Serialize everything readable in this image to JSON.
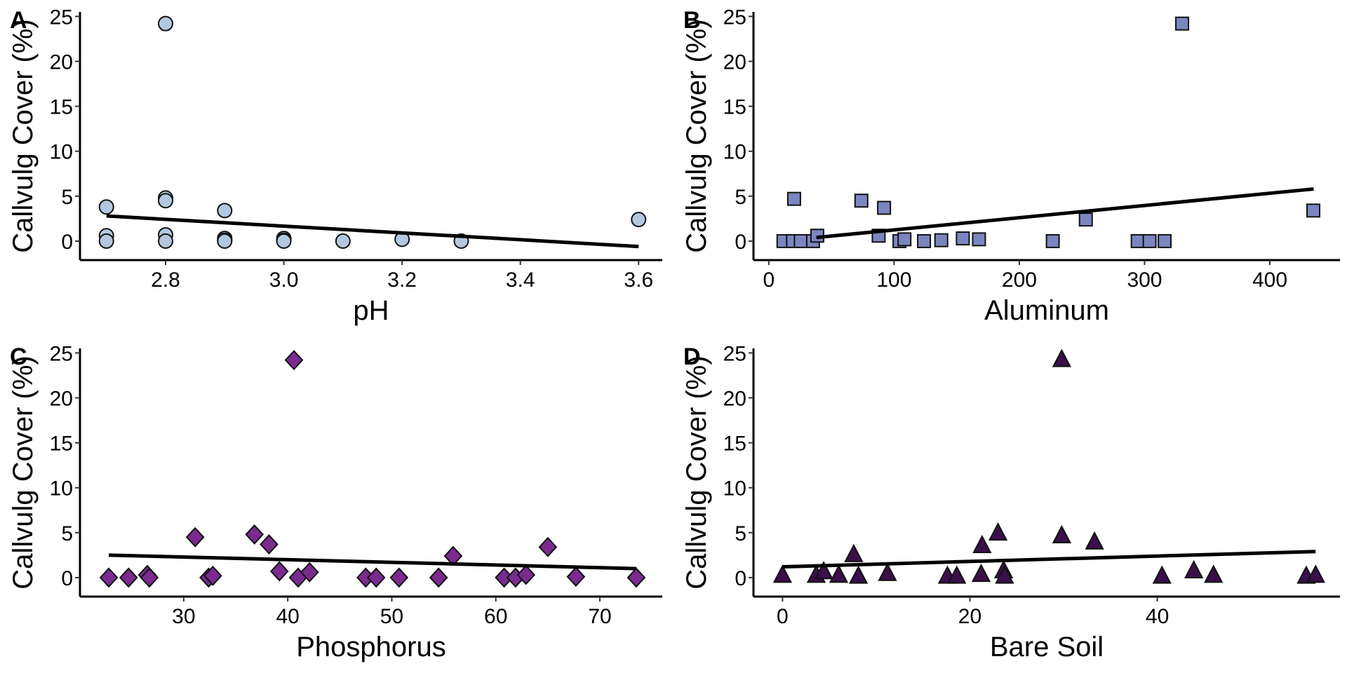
{
  "chart_data": [
    {
      "type": "scatter",
      "panel_label": "A",
      "xlabel": "pH",
      "ylabel": "Callvulg Cover (%)",
      "xlim": [
        2.66,
        3.64
      ],
      "ylim": [
        -1.8,
        25.5
      ],
      "xticks": [
        2.8,
        3.0,
        3.2,
        3.4,
        3.6
      ],
      "xtick_labels": [
        "2.8",
        "3.0",
        "3.2",
        "3.4",
        "3.6"
      ],
      "yticks": [
        0,
        5,
        10,
        15,
        20,
        25
      ],
      "ytick_labels": [
        "0",
        "5",
        "10",
        "15",
        "20",
        "25"
      ],
      "grid": false,
      "marker": "circle",
      "marker_color": "#b3c8e0",
      "points": [
        [
          2.7,
          3.8
        ],
        [
          2.7,
          0.6
        ],
        [
          2.7,
          0.0
        ],
        [
          2.8,
          24.2
        ],
        [
          2.8,
          4.8
        ],
        [
          2.8,
          4.5
        ],
        [
          2.8,
          0.7
        ],
        [
          2.8,
          0.0
        ],
        [
          2.9,
          3.4
        ],
        [
          2.9,
          0.3
        ],
        [
          2.9,
          0.1
        ],
        [
          2.9,
          0.0
        ],
        [
          3.0,
          0.3
        ],
        [
          3.0,
          0.1
        ],
        [
          3.0,
          0.0
        ],
        [
          3.1,
          0.0
        ],
        [
          3.2,
          0.2
        ],
        [
          3.3,
          0.0
        ],
        [
          3.6,
          2.4
        ]
      ],
      "trend_line": [
        [
          2.7,
          2.8
        ],
        [
          3.6,
          -0.6
        ]
      ]
    },
    {
      "type": "scatter",
      "panel_label": "B",
      "xlabel": "Aluminum",
      "ylabel": "Callvulg Cover (%)",
      "xlim": [
        -10,
        456
      ],
      "ylim": [
        -1.8,
        25.5
      ],
      "xticks": [
        0,
        100,
        200,
        300,
        400
      ],
      "xtick_labels": [
        "0",
        "100",
        "200",
        "300",
        "400"
      ],
      "yticks": [
        0,
        5,
        10,
        15,
        20,
        25
      ],
      "ytick_labels": [
        "0",
        "5",
        "10",
        "15",
        "20",
        "25"
      ],
      "grid": false,
      "marker": "square",
      "marker_color": "#7b86c0",
      "points": [
        [
          11.7,
          0.0
        ],
        [
          19.3,
          0.0
        ],
        [
          20.2,
          4.7
        ],
        [
          25.5,
          0.0
        ],
        [
          35.3,
          0.0
        ],
        [
          38.7,
          0.6
        ],
        [
          73.9,
          4.5
        ],
        [
          87.7,
          0.6
        ],
        [
          92.0,
          3.7
        ],
        [
          104.3,
          0.0
        ],
        [
          108.3,
          0.2
        ],
        [
          123.9,
          0.0
        ],
        [
          137.7,
          0.1
        ],
        [
          154.9,
          0.3
        ],
        [
          167.8,
          0.2
        ],
        [
          226.7,
          0.0
        ],
        [
          253.1,
          2.4
        ],
        [
          294.5,
          0.0
        ],
        [
          304.0,
          0.0
        ],
        [
          316.0,
          0.0
        ],
        [
          330.0,
          24.2
        ],
        [
          434.7,
          3.4
        ]
      ],
      "trend_line": [
        [
          38,
          0.4
        ],
        [
          435,
          5.8
        ]
      ]
    },
    {
      "type": "scatter",
      "panel_label": "C",
      "xlabel": "Phosphorus",
      "ylabel": "Callvulg Cover (%)",
      "xlim": [
        20.3,
        76.0
      ],
      "ylim": [
        -1.8,
        25.5
      ],
      "xticks": [
        30,
        40,
        50,
        60,
        70
      ],
      "xtick_labels": [
        "30",
        "40",
        "50",
        "60",
        "70"
      ],
      "yticks": [
        0,
        5,
        10,
        15,
        20,
        25
      ],
      "ytick_labels": [
        "0",
        "5",
        "10",
        "15",
        "20",
        "25"
      ],
      "grid": false,
      "marker": "diamond",
      "marker_color": "#7b2a8f",
      "points": [
        [
          22.8,
          0.0
        ],
        [
          24.7,
          0.0
        ],
        [
          26.5,
          0.3
        ],
        [
          26.7,
          0.0
        ],
        [
          31.1,
          4.5
        ],
        [
          32.4,
          0.0
        ],
        [
          32.8,
          0.2
        ],
        [
          36.8,
          4.8
        ],
        [
          38.2,
          3.7
        ],
        [
          39.2,
          0.7
        ],
        [
          40.6,
          24.2
        ],
        [
          41.0,
          0.0
        ],
        [
          42.1,
          0.6
        ],
        [
          47.5,
          0.0
        ],
        [
          48.5,
          0.0
        ],
        [
          50.7,
          0.0
        ],
        [
          54.5,
          0.0
        ],
        [
          55.9,
          2.4
        ],
        [
          60.8,
          0.0
        ],
        [
          61.9,
          0.0
        ],
        [
          62.9,
          0.3
        ],
        [
          65.0,
          3.4
        ],
        [
          67.7,
          0.1
        ],
        [
          73.5,
          0.0
        ]
      ],
      "trend_line": [
        [
          22.8,
          2.5
        ],
        [
          73.5,
          1.0
        ]
      ]
    },
    {
      "type": "scatter",
      "panel_label": "D",
      "xlabel": "Bare Soil",
      "ylabel": "Callvulg Cover (%)",
      "xlim": [
        -2.8,
        59.5
      ],
      "ylim": [
        -1.8,
        25.5
      ],
      "xticks": [
        0,
        20,
        40
      ],
      "xtick_labels": [
        "0",
        "20",
        "40"
      ],
      "yticks": [
        0,
        5,
        10,
        15,
        20,
        25
      ],
      "ytick_labels": [
        "0",
        "5",
        "10",
        "15",
        "20",
        "25"
      ],
      "grid": false,
      "marker": "triangle",
      "marker_color": "#3b0f4a",
      "points": [
        [
          0.0,
          0.2
        ],
        [
          3.6,
          0.2
        ],
        [
          4.4,
          0.6
        ],
        [
          6.0,
          0.2
        ],
        [
          7.6,
          2.5
        ],
        [
          8.1,
          0.1
        ],
        [
          11.2,
          0.4
        ],
        [
          17.6,
          0.1
        ],
        [
          18.6,
          0.1
        ],
        [
          21.2,
          0.3
        ],
        [
          21.3,
          3.5
        ],
        [
          23.0,
          4.9
        ],
        [
          23.6,
          0.7
        ],
        [
          23.7,
          0.1
        ],
        [
          29.8,
          24.2
        ],
        [
          29.8,
          4.6
        ],
        [
          33.3,
          3.9
        ],
        [
          40.5,
          0.1
        ],
        [
          43.9,
          0.7
        ],
        [
          46.0,
          0.2
        ],
        [
          55.9,
          0.1
        ],
        [
          56.9,
          0.2
        ]
      ],
      "trend_line": [
        [
          0.0,
          1.2
        ],
        [
          56.9,
          2.9
        ]
      ]
    }
  ]
}
